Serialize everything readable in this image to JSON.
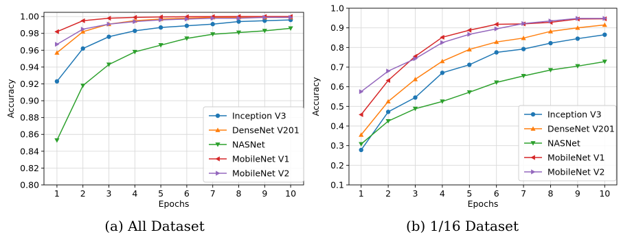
{
  "figure": {
    "captions": [
      "(a) All Dataset",
      "(b) 1/16 Dataset"
    ]
  },
  "chart_data": [
    {
      "type": "line",
      "title": "",
      "xlabel": "Epochs",
      "ylabel": "Accuracy",
      "x": [
        1,
        2,
        3,
        4,
        5,
        6,
        7,
        8,
        9,
        10
      ],
      "xlim": [
        0.5,
        10.5
      ],
      "ylim": [
        0.8,
        1.005
      ],
      "yticks": [
        0.8,
        0.82,
        0.84,
        0.86,
        0.88,
        0.9,
        0.92,
        0.94,
        0.96,
        0.98,
        1.0
      ],
      "ytick_labels": [
        "0.80",
        "0.82",
        "0.84",
        "0.86",
        "0.88",
        "0.90",
        "0.92",
        "0.94",
        "0.96",
        "0.98",
        "1.00"
      ],
      "grid": true,
      "legend_position": "lower-right",
      "series": [
        {
          "name": "Inception V3",
          "color": "#1f77b4",
          "marker": "circle",
          "values": [
            0.923,
            0.962,
            0.976,
            0.983,
            0.987,
            0.989,
            0.991,
            0.994,
            0.995,
            0.996
          ]
        },
        {
          "name": "DenseNet V201",
          "color": "#ff7f0e",
          "marker": "triangle-up",
          "values": [
            0.957,
            0.982,
            0.991,
            0.995,
            0.997,
            0.998,
            0.999,
            0.999,
            0.999,
            0.999
          ]
        },
        {
          "name": "NASNet",
          "color": "#2ca02c",
          "marker": "triangle-down",
          "values": [
            0.853,
            0.918,
            0.943,
            0.958,
            0.966,
            0.974,
            0.979,
            0.981,
            0.983,
            0.986
          ]
        },
        {
          "name": "MobileNet V1",
          "color": "#d62728",
          "marker": "triangle-left",
          "values": [
            0.982,
            0.995,
            0.998,
            0.999,
            0.9995,
            0.9998,
            0.9999,
            1.0,
            1.0,
            1.0
          ]
        },
        {
          "name": "MobileNet V2",
          "color": "#9467bd",
          "marker": "triangle-right",
          "values": [
            0.967,
            0.985,
            0.991,
            0.994,
            0.996,
            0.997,
            0.998,
            0.998,
            0.999,
            0.999
          ]
        }
      ]
    },
    {
      "type": "line",
      "title": "",
      "xlabel": "Epochs",
      "ylabel": "Accuracy",
      "x": [
        1,
        2,
        3,
        4,
        5,
        6,
        7,
        8,
        9,
        10
      ],
      "xlim": [
        0.55,
        10.45
      ],
      "ylim": [
        0.1,
        1.0
      ],
      "yticks": [
        0.1,
        0.2,
        0.3,
        0.4,
        0.5,
        0.6,
        0.7,
        0.8,
        0.9,
        1.0
      ],
      "ytick_labels": [
        "0.1",
        "0.2",
        "0.3",
        "0.4",
        "0.5",
        "0.6",
        "0.7",
        "0.8",
        "0.9",
        "1.0"
      ],
      "grid": true,
      "legend_position": "lower-right",
      "series": [
        {
          "name": "Inception V3",
          "color": "#1f77b4",
          "marker": "circle",
          "values": [
            0.278,
            0.472,
            0.545,
            0.671,
            0.712,
            0.775,
            0.792,
            0.822,
            0.845,
            0.865
          ]
        },
        {
          "name": "DenseNet V201",
          "color": "#ff7f0e",
          "marker": "triangle-up",
          "values": [
            0.355,
            0.525,
            0.638,
            0.73,
            0.79,
            0.828,
            0.848,
            0.882,
            0.9,
            0.915
          ]
        },
        {
          "name": "NASNet",
          "color": "#2ca02c",
          "marker": "triangle-down",
          "values": [
            0.308,
            0.425,
            0.488,
            0.525,
            0.572,
            0.622,
            0.655,
            0.685,
            0.705,
            0.728
          ]
        },
        {
          "name": "MobileNet V1",
          "color": "#d62728",
          "marker": "triangle-left",
          "values": [
            0.458,
            0.632,
            0.755,
            0.852,
            0.888,
            0.918,
            0.92,
            0.928,
            0.945,
            0.946
          ]
        },
        {
          "name": "MobileNet V2",
          "color": "#9467bd",
          "marker": "triangle-right",
          "values": [
            0.575,
            0.68,
            0.743,
            0.825,
            0.867,
            0.895,
            0.922,
            0.935,
            0.948,
            0.948
          ]
        }
      ]
    }
  ]
}
